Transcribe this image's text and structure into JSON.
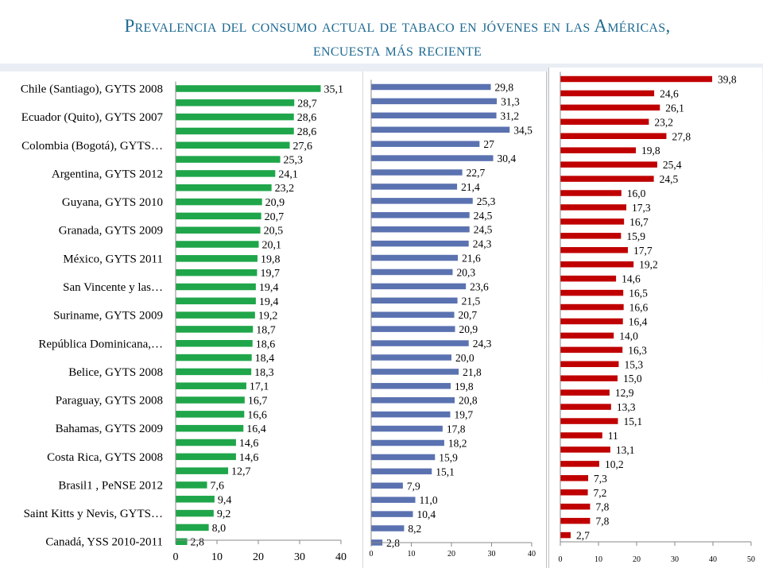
{
  "title": {
    "line1": "Prevalencia del consumo actual de tabaco en jóvenes en las Américas,",
    "line2": "encuesta más reciente"
  },
  "chart_data": [
    {
      "type": "bar",
      "orientation": "horizontal",
      "color": "#1fa64a",
      "xlim": [
        0,
        40
      ],
      "xticks": [
        "0",
        "10",
        "20",
        "30",
        "40"
      ],
      "grid": false,
      "categories": [
        "Chile (Santiago), GYTS 2008",
        "",
        "Ecuador (Quito), GYTS 2007",
        "",
        "Colombia (Bogotá), GYTS…",
        "",
        "Argentina, GYTS 2012",
        "",
        "Guyana, GYTS 2010",
        "",
        "Granada, GYTS 2009",
        "",
        "México, GYTS 2011",
        "",
        "San Vincente y las…",
        "",
        "Suriname, GYTS 2009",
        "",
        "República Dominicana,…",
        "",
        "Belice, GYTS 2008",
        "",
        "Paraguay, GYTS 2008",
        "",
        "Bahamas, GYTS 2009",
        "",
        "Costa Rica, GYTS 2008",
        "",
        "Brasil1 , PeNSE 2012",
        "",
        "Saint Kitts y Nevis, GYTS…",
        "",
        "Canadá, YSS 2010-2011"
      ],
      "values": [
        35.1,
        28.7,
        28.6,
        28.6,
        27.6,
        25.3,
        24.1,
        23.2,
        20.9,
        20.7,
        20.5,
        20.1,
        19.8,
        19.7,
        19.4,
        19.4,
        19.2,
        18.7,
        18.6,
        18.4,
        18.3,
        17.1,
        16.7,
        16.6,
        16.4,
        14.6,
        14.6,
        12.7,
        7.6,
        9.4,
        9.2,
        8.0,
        2.8
      ],
      "value_labels": [
        "35,1",
        "28,7",
        "28,6",
        "28,6",
        "27,6",
        "25,3",
        "24,1",
        "23,2",
        "20,9",
        "20,7",
        "20,5",
        "20,1",
        "19,8",
        "19,7",
        "19,4",
        "19,4",
        "19,2",
        "18,7",
        "18,6",
        "18,4",
        "18,3",
        "17,1",
        "16,7",
        "16,6",
        "16,4",
        "14,6",
        "14,6",
        "12,7",
        "7,6",
        "9,4",
        "9,2",
        "8,0",
        "2,8"
      ]
    },
    {
      "type": "bar",
      "orientation": "horizontal",
      "color": "#5b72b1",
      "xlim": [
        0,
        40
      ],
      "xticks": [
        "0",
        "10",
        "20",
        "30",
        "40"
      ],
      "grid": false,
      "values": [
        29.8,
        31.3,
        31.2,
        34.5,
        27,
        30.4,
        22.7,
        21.4,
        25.3,
        24.5,
        24.5,
        24.3,
        21.6,
        20.3,
        23.6,
        21.5,
        20.7,
        20.9,
        24.3,
        20.0,
        21.8,
        19.8,
        20.8,
        19.7,
        17.8,
        18.2,
        15.9,
        15.1,
        7.9,
        11.0,
        10.4,
        8.2,
        2.8
      ],
      "value_labels": [
        "29,8",
        "31,3",
        "31,2",
        "34,5",
        "27",
        "30,4",
        "22,7",
        "21,4",
        "25,3",
        "24,5",
        "24,5",
        "24,3",
        "21,6",
        "20,3",
        "23,6",
        "21,5",
        "20,7",
        "20,9",
        "24,3",
        "20,0",
        "21,8",
        "19,8",
        "20,8",
        "19,7",
        "17,8",
        "18,2",
        "15,9",
        "15,1",
        "7,9",
        "11,0",
        "10,4",
        "8,2",
        "2,8"
      ]
    },
    {
      "type": "bar",
      "orientation": "horizontal",
      "color": "#c00000",
      "xlim": [
        0,
        50
      ],
      "xticks": [
        "0",
        "10",
        "20",
        "30",
        "40",
        "50"
      ],
      "grid": false,
      "values": [
        39.8,
        24.6,
        26.1,
        23.2,
        27.8,
        19.8,
        25.4,
        24.5,
        16.0,
        17.3,
        16.7,
        15.9,
        17.7,
        19.2,
        14.6,
        16.5,
        16.6,
        16.4,
        14.0,
        16.3,
        15.3,
        15.0,
        12.9,
        13.3,
        15.1,
        11,
        13.1,
        10.2,
        7.3,
        7.2,
        7.8,
        7.8,
        2.7
      ],
      "value_labels": [
        "39,8",
        "24,6",
        "26,1",
        "23,2",
        "27,8",
        "19,8",
        "25,4",
        "24,5",
        "16,0",
        "17,3",
        "16,7",
        "15,9",
        "17,7",
        "19,2",
        "14,6",
        "16,5",
        "16,6",
        "16,4",
        "14,0",
        "16,3",
        "15,3",
        "15,0",
        "12,9",
        "13,3",
        "15,1",
        "11",
        "13,1",
        "10,2",
        "7,3",
        "7,2",
        "7,8",
        "7,8",
        "2,7"
      ]
    }
  ]
}
